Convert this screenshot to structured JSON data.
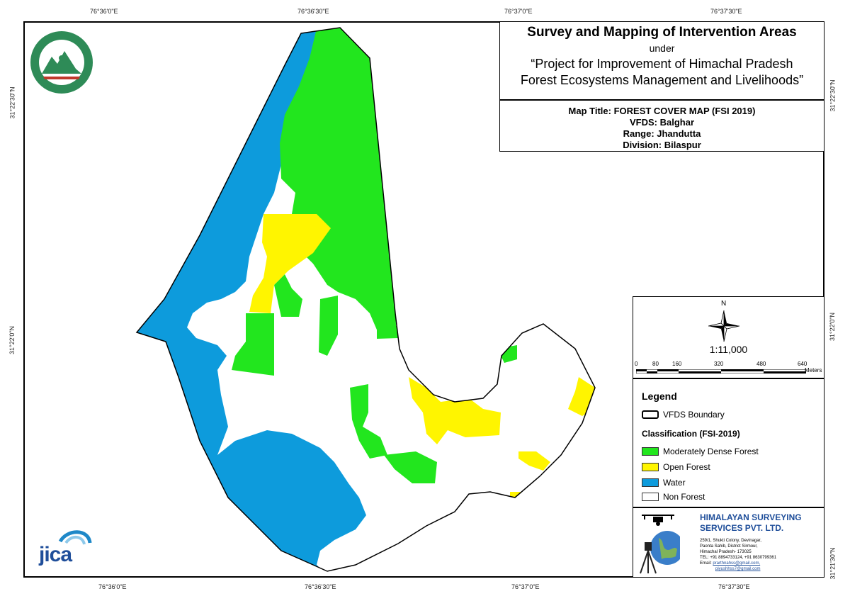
{
  "coords": {
    "top": [
      "76°36'0\"E",
      "76°36'30\"E",
      "76°37'0\"E",
      "76°37'30\"E"
    ],
    "bottom": [
      "76°36'0\"E",
      "76°36'30\"E",
      "76°37'0\"E",
      "76°37'30\"E"
    ],
    "left": [
      "31°22'30\"N",
      "31°22'0\"N"
    ],
    "right": [
      "31°22'30\"N",
      "31°22'0\"N",
      "31°21'30\"N"
    ]
  },
  "title": {
    "main": "Survey and Mapping of Intervention Areas",
    "under": "under",
    "project_line1": "“Project for Improvement of Himachal Pradesh",
    "project_line2": "Forest Ecosystems Management and Livelihoods”"
  },
  "info": {
    "map_title": "Map Title: FOREST COVER MAP (FSI 2019)",
    "vfds": "VFDS: Balghar",
    "range": "Range: Jhandutta",
    "division": "Division: Bilaspur"
  },
  "north": "N",
  "scale": {
    "ratio": "1:11,000",
    "ticks": [
      "0",
      "80",
      "160",
      "320",
      "480",
      "640"
    ],
    "unit": "Meters"
  },
  "legend": {
    "title": "Legend",
    "boundary": "VFDS Boundary",
    "classification_title": "Classification (FSI-2019)",
    "items": [
      {
        "label": "Moderately Dense Forest",
        "color": "#22e61e"
      },
      {
        "label": "Open Forest",
        "color": "#fff500"
      },
      {
        "label": "Water",
        "color": "#0d9bdc"
      },
      {
        "label": "Non Forest",
        "color": "#ffffff"
      }
    ]
  },
  "company": {
    "name_line1": "HIMALAYAN SURVEYING",
    "name_line2": "SERVICES PVT. LTD.",
    "address": [
      "259/1, Shukti Colony, Devinagar,",
      "Paonta Sahib, District Sirmour,",
      "Himachal Pradesh- 173025"
    ],
    "tel": "TEL: +91 8894733124, +91 8630799361",
    "email1": "prarthnahss@gmail.com,",
    "email2": "piyushhss7@gmail.com"
  },
  "logo_text": "JICA",
  "colors": {
    "mdf": "#22e61e",
    "open": "#fff500",
    "water": "#0d9bdc",
    "nonforest": "#ffffff",
    "text_blue": "#1f4e9a"
  }
}
